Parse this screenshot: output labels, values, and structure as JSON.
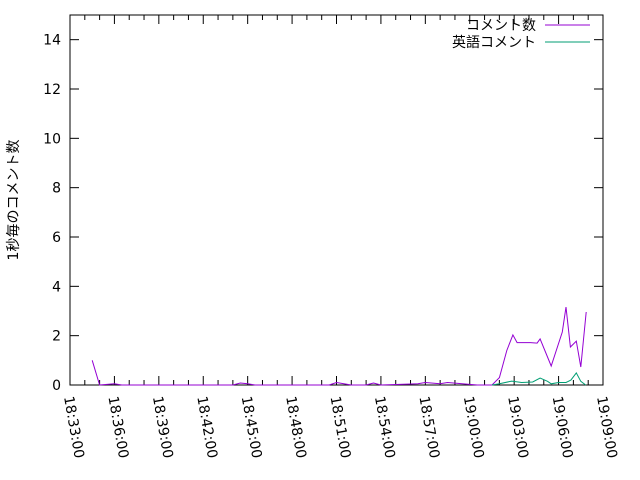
{
  "chart_data": {
    "type": "line",
    "title": "",
    "xlabel": "",
    "ylabel": "1秒毎のコメント数",
    "xlim": [
      "18:33:00",
      "19:09:00"
    ],
    "ylim": [
      0,
      15
    ],
    "x_tick_labels": [
      "18:33:00",
      "18:36:00",
      "18:39:00",
      "18:42:00",
      "18:45:00",
      "18:48:00",
      "18:51:00",
      "18:54:00",
      "18:57:00",
      "19:00:00",
      "19:03:00",
      "19:06:00",
      "19:09:00"
    ],
    "y_tick_labels": [
      "0",
      "2",
      "4",
      "6",
      "8",
      "10",
      "12",
      "14"
    ],
    "grid": false,
    "legend_position": "top-right",
    "series": [
      {
        "name": "コメント数",
        "color": "#9400d3",
        "points": [
          [
            "18:34:30",
            1.0
          ],
          [
            "18:35:00",
            0
          ],
          [
            "18:36:00",
            0.05
          ],
          [
            "18:36:30",
            0
          ],
          [
            "18:44:00",
            0
          ],
          [
            "18:44:30",
            0.08
          ],
          [
            "18:45:00",
            0.05
          ],
          [
            "18:45:30",
            0
          ],
          [
            "18:50:30",
            0
          ],
          [
            "18:51:00",
            0.1
          ],
          [
            "18:51:30",
            0.05
          ],
          [
            "18:52:00",
            0
          ],
          [
            "18:53:00",
            0
          ],
          [
            "18:53:30",
            0.08
          ],
          [
            "18:54:00",
            0
          ],
          [
            "18:56:30",
            0.05
          ],
          [
            "18:57:00",
            0.1
          ],
          [
            "18:58:00",
            0.05
          ],
          [
            "18:58:30",
            0.1
          ],
          [
            "18:59:30",
            0.05
          ],
          [
            "19:00:30",
            0
          ],
          [
            "19:01:30",
            0
          ],
          [
            "19:02:00",
            0.3
          ],
          [
            "19:02:30",
            1.4
          ],
          [
            "19:02:55",
            2.03
          ],
          [
            "19:03:12",
            1.72
          ],
          [
            "19:04:06",
            1.72
          ],
          [
            "19:04:33",
            1.7
          ],
          [
            "19:04:45",
            1.87
          ],
          [
            "19:05:30",
            0.77
          ],
          [
            "19:06:15",
            2.15
          ],
          [
            "19:06:30",
            3.16
          ],
          [
            "19:06:48",
            1.54
          ],
          [
            "19:07:12",
            1.78
          ],
          [
            "19:07:30",
            0.73
          ],
          [
            "19:07:52",
            2.96
          ]
        ]
      },
      {
        "name": "英語コメント",
        "color": "#009e73",
        "points": [
          [
            "19:01:30",
            0
          ],
          [
            "19:02:00",
            0.05
          ],
          [
            "19:02:50",
            0.16
          ],
          [
            "19:03:30",
            0.1
          ],
          [
            "19:04:15",
            0.12
          ],
          [
            "19:04:45",
            0.28
          ],
          [
            "19:05:15",
            0.15
          ],
          [
            "19:05:30",
            0.05
          ],
          [
            "19:06:00",
            0.1
          ],
          [
            "19:06:30",
            0.1
          ],
          [
            "19:06:50",
            0.2
          ],
          [
            "19:07:12",
            0.49
          ],
          [
            "19:07:30",
            0.15
          ],
          [
            "19:07:50",
            0
          ]
        ]
      }
    ]
  }
}
